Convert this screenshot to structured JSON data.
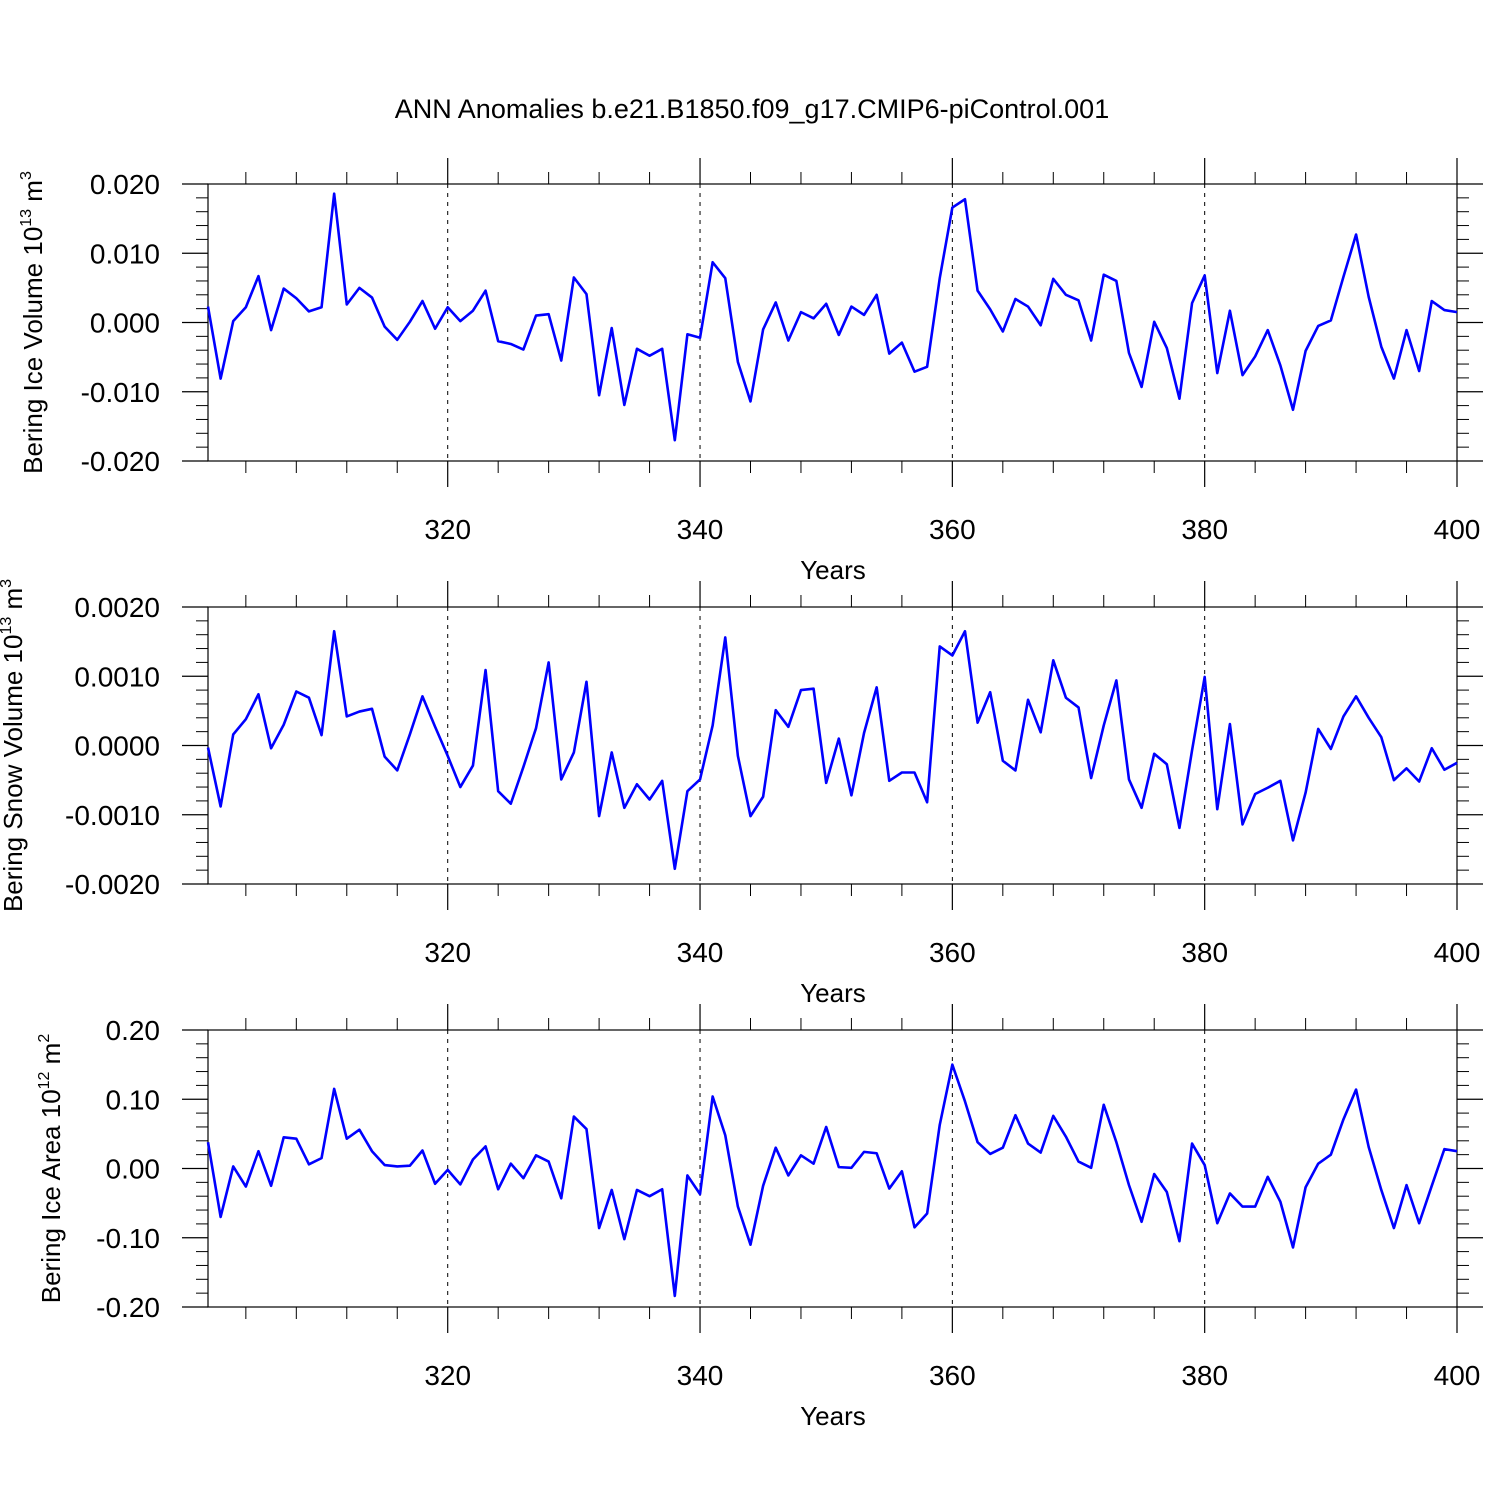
{
  "figure": {
    "title": "ANN Anomalies b.e21.B1850.f09_g17.CMIP6-piControl.001",
    "line_color": "#0000ff"
  },
  "chart_data": [
    {
      "type": "line",
      "name": "bering-ice-volume",
      "ylabel": "Bering Ice Volume",
      "units_base": "10",
      "units_exp": "13",
      "units_unit": "m",
      "units_unit_exp": "3",
      "xlabel": "Years",
      "xlim": [
        301,
        400
      ],
      "ylim": [
        -0.02,
        0.02
      ],
      "xticks": [
        320,
        340,
        360,
        380,
        400
      ],
      "xtick_labels": [
        "320",
        "340",
        "360",
        "380",
        "400"
      ],
      "yticks": [
        0.02,
        0.01,
        0.0,
        -0.01,
        -0.02
      ],
      "ytick_labels": [
        "0.020",
        "0.010",
        "0.000",
        "-0.010",
        "-0.020"
      ],
      "x_start": 301,
      "values": [
        0.0023,
        -0.0081,
        0.0002,
        0.0022,
        0.0067,
        -0.0011,
        0.0049,
        0.0035,
        0.0016,
        0.0022,
        0.0186,
        0.0026,
        0.005,
        0.0036,
        -0.0006,
        -0.0025,
        0.0001,
        0.0031,
        -0.0009,
        0.0022,
        0.0002,
        0.0017,
        0.0046,
        -0.0027,
        -0.0031,
        -0.0039,
        0.001,
        0.0012,
        -0.0055,
        0.0065,
        0.0041,
        -0.0105,
        -0.0008,
        -0.0119,
        -0.0038,
        -0.0048,
        -0.0038,
        -0.017,
        -0.0017,
        -0.0022,
        0.0087,
        0.0064,
        -0.0057,
        -0.0114,
        -0.001,
        0.0029,
        -0.0026,
        0.0015,
        0.0006,
        0.0027,
        -0.0018,
        0.0023,
        0.0011,
        0.004,
        -0.0045,
        -0.0029,
        -0.0071,
        -0.0064,
        0.0064,
        0.0166,
        0.0178,
        0.0046,
        0.0019,
        -0.0013,
        0.0034,
        0.0023,
        -0.0004,
        0.0063,
        0.004,
        0.0032,
        -0.0026,
        0.0069,
        0.006,
        -0.0044,
        -0.0093,
        0.0001,
        -0.0037,
        -0.011,
        0.0028,
        0.0068,
        -0.0073,
        0.0017,
        -0.0076,
        -0.0049,
        -0.0011,
        -0.0062,
        -0.0126,
        -0.0041,
        -0.0005,
        0.0003,
        0.0066,
        0.0127,
        0.0037,
        -0.0035,
        -0.0081,
        -0.0011,
        -0.007,
        0.0031,
        0.0018,
        0.0015
      ]
    },
    {
      "type": "line",
      "name": "bering-snow-volume",
      "ylabel": "Bering Snow Volume",
      "units_base": "10",
      "units_exp": "13",
      "units_unit": "m",
      "units_unit_exp": "3",
      "xlabel": "Years",
      "xlim": [
        301,
        400
      ],
      "ylim": [
        -0.002,
        0.002
      ],
      "xticks": [
        320,
        340,
        360,
        380,
        400
      ],
      "xtick_labels": [
        "320",
        "340",
        "360",
        "380",
        "400"
      ],
      "yticks": [
        0.002,
        0.001,
        0.0,
        -0.001,
        -0.002
      ],
      "ytick_labels": [
        "0.0020",
        "0.0010",
        "0.0000",
        "-0.0010",
        "-0.0020"
      ],
      "x_start": 301,
      "values": [
        -3e-05,
        -0.00088,
        0.00016,
        0.00038,
        0.00074,
        -4e-05,
        0.0003,
        0.00078,
        0.00069,
        0.00015,
        0.00165,
        0.00042,
        0.00049,
        0.00053,
        -0.00016,
        -0.00036,
        0.00016,
        0.00071,
        0.00027,
        -0.00015,
        -0.0006,
        -0.00029,
        0.00109,
        -0.00066,
        -0.00084,
        -0.00031,
        0.00025,
        0.0012,
        -0.00049,
        -0.0001,
        0.00092,
        -0.00102,
        -0.0001,
        -0.0009,
        -0.00056,
        -0.00078,
        -0.00051,
        -0.00178,
        -0.00066,
        -0.00049,
        0.00029,
        0.00156,
        -0.00015,
        -0.00102,
        -0.00074,
        0.00051,
        0.00027,
        0.0008,
        0.00082,
        -0.00054,
        0.0001,
        -0.00072,
        0.00018,
        0.00084,
        -0.00051,
        -0.00039,
        -0.00039,
        -0.00082,
        0.00143,
        0.0013,
        0.00165,
        0.00033,
        0.00077,
        -0.00022,
        -0.00036,
        0.00066,
        0.00019,
        0.00123,
        0.00069,
        0.00055,
        -0.00047,
        0.00029,
        0.00094,
        -0.00049,
        -0.0009,
        -0.00012,
        -0.00027,
        -0.00119,
        -7e-05,
        0.00099,
        -0.00092,
        0.00031,
        -0.00114,
        -0.0007,
        -0.00061,
        -0.00051,
        -0.00137,
        -0.00068,
        0.00024,
        -5e-05,
        0.00042,
        0.00071,
        0.0004,
        0.00012,
        -0.0005,
        -0.00033,
        -0.00052,
        -4e-05,
        -0.00035,
        -0.00025
      ]
    },
    {
      "type": "line",
      "name": "bering-ice-area",
      "ylabel": "Bering Ice Area",
      "units_base": "10",
      "units_exp": "12",
      "units_unit": "m",
      "units_unit_exp": "2",
      "xlabel": "Years",
      "xlim": [
        301,
        400
      ],
      "ylim": [
        -0.2,
        0.2
      ],
      "xticks": [
        320,
        340,
        360,
        380,
        400
      ],
      "xtick_labels": [
        "320",
        "340",
        "360",
        "380",
        "400"
      ],
      "yticks": [
        0.2,
        0.1,
        0.0,
        -0.1,
        -0.2
      ],
      "ytick_labels": [
        "0.20",
        "0.10",
        "0.00",
        "-0.10",
        "-0.20"
      ],
      "x_start": 301,
      "values": [
        0.038,
        -0.07,
        0.003,
        -0.026,
        0.025,
        -0.025,
        0.045,
        0.043,
        0.006,
        0.015,
        0.115,
        0.043,
        0.056,
        0.025,
        0.005,
        0.003,
        0.004,
        0.026,
        -0.022,
        -0.002,
        -0.023,
        0.013,
        0.032,
        -0.03,
        0.007,
        -0.014,
        0.019,
        0.01,
        -0.043,
        0.075,
        0.057,
        -0.086,
        -0.031,
        -0.102,
        -0.031,
        -0.04,
        -0.03,
        -0.184,
        -0.01,
        -0.037,
        0.104,
        0.048,
        -0.055,
        -0.11,
        -0.025,
        0.03,
        -0.01,
        0.019,
        0.007,
        0.06,
        0.002,
        0.001,
        0.024,
        0.022,
        -0.029,
        -0.004,
        -0.085,
        -0.065,
        0.063,
        0.15,
        0.097,
        0.038,
        0.021,
        0.03,
        0.077,
        0.036,
        0.023,
        0.076,
        0.046,
        0.01,
        0.001,
        0.092,
        0.038,
        -0.024,
        -0.077,
        -0.008,
        -0.034,
        -0.105,
        0.036,
        0.005,
        -0.079,
        -0.036,
        -0.055,
        -0.055,
        -0.012,
        -0.048,
        -0.114,
        -0.027,
        0.007,
        0.02,
        0.071,
        0.114,
        0.031,
        -0.031,
        -0.086,
        -0.024,
        -0.079,
        -0.025,
        0.028,
        0.025
      ]
    }
  ]
}
